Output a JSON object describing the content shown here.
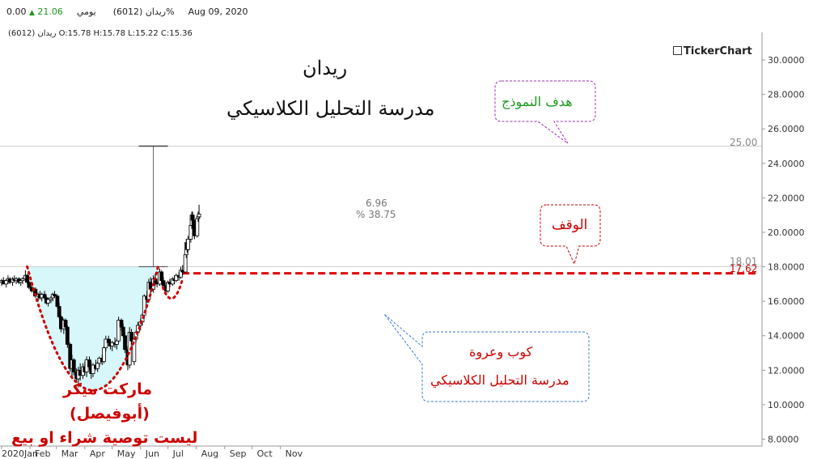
{
  "header": {
    "symbol": "ريدان (6012)",
    "period": "يومي",
    "price": "21.06",
    "change_pct": "0.00%",
    "date": "Aug 09, 2020"
  },
  "ohlc_line": "ريدان (6012)  O:15.78  H:15.78  L:15.22  C:15.36",
  "brand": "TickerChart",
  "titles": {
    "line1": "ريدان",
    "line2": "مدرسة التحليل الكلاسيكي"
  },
  "annotations": {
    "target_label": "هدف النموذج",
    "stop_label": "الوقف",
    "pattern_line1": "كوب وعروة",
    "pattern_line2": "مدرسة التحليل الكلاسيكي",
    "measure_value": "6.96",
    "measure_pct": "% 38.75",
    "target_price": "25.00",
    "neckline_price": "18.01",
    "stop_price": "17.62",
    "credit_line1": "ماركت ميكر",
    "credit_line2": "(أبوفيصل)",
    "credit_line3": "ليست توصية شراء او بيع"
  },
  "colors": {
    "up": "#ffffff",
    "down": "#000000",
    "cup_fill": "#d8f7fb",
    "dotted_red": "#cc0000",
    "stop_dashed": "#e00000",
    "target_callout": "#9b30b5",
    "target_text": "#1a9a1a",
    "pattern_callout": "#3a7bd5",
    "accent_green": "#1a9a1a"
  },
  "chart_data": {
    "type": "candlestick",
    "x_tick_labels": [
      "2020Jan",
      "Feb",
      "Mar",
      "Apr",
      "May",
      "Jun",
      "Jul",
      "Aug",
      "Sep",
      "Oct",
      "Nov"
    ],
    "y_tick_labels": [
      "8.0000",
      "10.0000",
      "12.0000",
      "14.0000",
      "16.0000",
      "18.0000",
      "20.0000",
      "22.0000",
      "24.0000",
      "26.0000",
      "28.0000",
      "30.0000"
    ],
    "ylim": [
      7.6,
      31.6
    ],
    "grid": false,
    "reference_lines": [
      {
        "label": "25.00",
        "value": 25.0
      },
      {
        "label": "18.01",
        "value": 18.01
      },
      {
        "label": "17.62",
        "value": 17.62
      }
    ],
    "candles": [
      {
        "d": "2020-01-01",
        "o": 17.1,
        "h": 17.3,
        "l": 16.9,
        "c": 17.2
      },
      {
        "d": "2020-01-03",
        "o": 17.2,
        "h": 17.4,
        "l": 17.0,
        "c": 17.0
      },
      {
        "d": "2020-01-06",
        "o": 17.0,
        "h": 17.3,
        "l": 16.8,
        "c": 17.2
      },
      {
        "d": "2020-01-08",
        "o": 17.2,
        "h": 17.5,
        "l": 17.0,
        "c": 17.3
      },
      {
        "d": "2020-01-10",
        "o": 17.3,
        "h": 17.4,
        "l": 17.0,
        "c": 17.1
      },
      {
        "d": "2020-01-13",
        "o": 17.1,
        "h": 17.4,
        "l": 16.9,
        "c": 17.3
      },
      {
        "d": "2020-01-15",
        "o": 17.3,
        "h": 17.5,
        "l": 17.1,
        "c": 17.2
      },
      {
        "d": "2020-01-17",
        "o": 17.2,
        "h": 17.4,
        "l": 17.0,
        "c": 17.3
      },
      {
        "d": "2020-01-20",
        "o": 17.3,
        "h": 17.4,
        "l": 17.0,
        "c": 17.1
      },
      {
        "d": "2020-01-22",
        "o": 17.1,
        "h": 17.3,
        "l": 16.9,
        "c": 17.2
      },
      {
        "d": "2020-01-24",
        "o": 17.2,
        "h": 17.4,
        "l": 17.0,
        "c": 17.3
      },
      {
        "d": "2020-01-27",
        "o": 17.3,
        "h": 17.8,
        "l": 17.1,
        "c": 17.5
      },
      {
        "d": "2020-01-29",
        "o": 17.5,
        "h": 17.6,
        "l": 17.0,
        "c": 17.1
      },
      {
        "d": "2020-01-31",
        "o": 17.1,
        "h": 17.2,
        "l": 16.7,
        "c": 16.8
      },
      {
        "d": "2020-02-03",
        "o": 16.8,
        "h": 17.0,
        "l": 16.5,
        "c": 16.6
      },
      {
        "d": "2020-02-05",
        "o": 16.6,
        "h": 16.8,
        "l": 16.3,
        "c": 16.7
      },
      {
        "d": "2020-02-07",
        "o": 16.7,
        "h": 16.8,
        "l": 16.2,
        "c": 16.3
      },
      {
        "d": "2020-02-10",
        "o": 16.3,
        "h": 16.5,
        "l": 16.0,
        "c": 16.4
      },
      {
        "d": "2020-02-12",
        "o": 16.4,
        "h": 16.6,
        "l": 16.1,
        "c": 16.2
      },
      {
        "d": "2020-02-14",
        "o": 16.2,
        "h": 16.5,
        "l": 16.0,
        "c": 16.4
      },
      {
        "d": "2020-02-17",
        "o": 16.4,
        "h": 16.6,
        "l": 16.1,
        "c": 16.2
      },
      {
        "d": "2020-02-19",
        "o": 16.2,
        "h": 16.3,
        "l": 15.8,
        "c": 15.9
      },
      {
        "d": "2020-02-21",
        "o": 15.9,
        "h": 16.2,
        "l": 15.7,
        "c": 16.1
      },
      {
        "d": "2020-02-24",
        "o": 16.1,
        "h": 16.3,
        "l": 15.9,
        "c": 16.2
      },
      {
        "d": "2020-02-26",
        "o": 16.2,
        "h": 16.5,
        "l": 16.0,
        "c": 16.4
      },
      {
        "d": "2020-02-28",
        "o": 16.4,
        "h": 16.6,
        "l": 16.2,
        "c": 16.3
      },
      {
        "d": "2020-03-02",
        "o": 16.3,
        "h": 16.4,
        "l": 15.6,
        "c": 15.7
      },
      {
        "d": "2020-03-04",
        "o": 15.7,
        "h": 15.9,
        "l": 15.0,
        "c": 15.1
      },
      {
        "d": "2020-03-06",
        "o": 15.1,
        "h": 15.2,
        "l": 14.2,
        "c": 14.4
      },
      {
        "d": "2020-03-09",
        "o": 14.4,
        "h": 15.0,
        "l": 14.1,
        "c": 14.9
      },
      {
        "d": "2020-03-11",
        "o": 14.9,
        "h": 15.0,
        "l": 14.3,
        "c": 14.5
      },
      {
        "d": "2020-03-13",
        "o": 14.5,
        "h": 14.6,
        "l": 13.3,
        "c": 13.5
      },
      {
        "d": "2020-03-16",
        "o": 13.5,
        "h": 13.6,
        "l": 11.9,
        "c": 12.1
      },
      {
        "d": "2020-03-18",
        "o": 12.1,
        "h": 12.9,
        "l": 11.6,
        "c": 12.6
      },
      {
        "d": "2020-03-20",
        "o": 12.6,
        "h": 12.7,
        "l": 11.7,
        "c": 11.9
      },
      {
        "d": "2020-03-23",
        "o": 11.9,
        "h": 12.1,
        "l": 11.3,
        "c": 11.5
      },
      {
        "d": "2020-03-25",
        "o": 11.5,
        "h": 12.2,
        "l": 11.0,
        "c": 12.0
      },
      {
        "d": "2020-03-27",
        "o": 12.0,
        "h": 12.4,
        "l": 11.4,
        "c": 11.7
      },
      {
        "d": "2020-03-30",
        "o": 11.7,
        "h": 12.4,
        "l": 11.5,
        "c": 12.2
      },
      {
        "d": "2020-04-01",
        "o": 12.2,
        "h": 12.5,
        "l": 11.7,
        "c": 11.9
      },
      {
        "d": "2020-04-03",
        "o": 11.9,
        "h": 12.8,
        "l": 11.6,
        "c": 12.6
      },
      {
        "d": "2020-04-06",
        "o": 12.6,
        "h": 12.8,
        "l": 12.0,
        "c": 12.2
      },
      {
        "d": "2020-04-08",
        "o": 12.2,
        "h": 12.5,
        "l": 11.5,
        "c": 11.8
      },
      {
        "d": "2020-04-10",
        "o": 11.8,
        "h": 12.4,
        "l": 11.6,
        "c": 12.3
      },
      {
        "d": "2020-04-13",
        "o": 12.3,
        "h": 12.6,
        "l": 12.0,
        "c": 12.1
      },
      {
        "d": "2020-04-15",
        "o": 12.1,
        "h": 12.5,
        "l": 11.9,
        "c": 12.4
      },
      {
        "d": "2020-04-17",
        "o": 12.4,
        "h": 12.8,
        "l": 12.2,
        "c": 12.7
      },
      {
        "d": "2020-04-20",
        "o": 12.7,
        "h": 12.9,
        "l": 12.3,
        "c": 12.5
      },
      {
        "d": "2020-04-22",
        "o": 12.5,
        "h": 13.4,
        "l": 12.4,
        "c": 13.3
      },
      {
        "d": "2020-04-24",
        "o": 13.3,
        "h": 14.0,
        "l": 13.1,
        "c": 13.8
      },
      {
        "d": "2020-04-27",
        "o": 13.8,
        "h": 14.0,
        "l": 13.4,
        "c": 13.6
      },
      {
        "d": "2020-04-29",
        "o": 13.6,
        "h": 13.8,
        "l": 13.2,
        "c": 13.4
      },
      {
        "d": "2020-05-01",
        "o": 13.4,
        "h": 13.7,
        "l": 13.1,
        "c": 13.6
      },
      {
        "d": "2020-05-04",
        "o": 13.6,
        "h": 13.9,
        "l": 13.3,
        "c": 13.5
      },
      {
        "d": "2020-05-06",
        "o": 13.5,
        "h": 13.8,
        "l": 13.2,
        "c": 13.7
      },
      {
        "d": "2020-05-08",
        "o": 13.7,
        "h": 15.1,
        "l": 13.6,
        "c": 14.9
      },
      {
        "d": "2020-05-11",
        "o": 14.9,
        "h": 15.0,
        "l": 14.3,
        "c": 14.5
      },
      {
        "d": "2020-05-13",
        "o": 14.5,
        "h": 14.7,
        "l": 13.9,
        "c": 14.0
      },
      {
        "d": "2020-05-15",
        "o": 14.0,
        "h": 14.2,
        "l": 13.0,
        "c": 13.2
      },
      {
        "d": "2020-05-18",
        "o": 13.2,
        "h": 13.4,
        "l": 12.0,
        "c": 12.3
      },
      {
        "d": "2020-05-20",
        "o": 12.3,
        "h": 14.5,
        "l": 12.1,
        "c": 14.2
      },
      {
        "d": "2020-05-22",
        "o": 14.2,
        "h": 14.4,
        "l": 13.5,
        "c": 13.7
      },
      {
        "d": "2020-05-25",
        "o": 12.5,
        "h": 13.9,
        "l": 12.3,
        "c": 13.8
      },
      {
        "d": "2020-05-27",
        "o": 13.8,
        "h": 14.3,
        "l": 13.6,
        "c": 14.2
      },
      {
        "d": "2020-05-29",
        "o": 14.2,
        "h": 14.8,
        "l": 14.0,
        "c": 14.6
      },
      {
        "d": "2020-06-01",
        "o": 14.6,
        "h": 15.0,
        "l": 14.3,
        "c": 14.8
      },
      {
        "d": "2020-06-03",
        "o": 14.8,
        "h": 15.3,
        "l": 14.6,
        "c": 15.2
      },
      {
        "d": "2020-06-05",
        "o": 15.2,
        "h": 16.4,
        "l": 15.0,
        "c": 16.3
      },
      {
        "d": "2020-06-08",
        "o": 16.3,
        "h": 16.6,
        "l": 15.9,
        "c": 16.1
      },
      {
        "d": "2020-06-10",
        "o": 16.1,
        "h": 17.3,
        "l": 16.0,
        "c": 17.1
      },
      {
        "d": "2020-06-12",
        "o": 17.1,
        "h": 17.4,
        "l": 16.5,
        "c": 16.7
      },
      {
        "d": "2020-06-15",
        "o": 16.7,
        "h": 17.5,
        "l": 16.5,
        "c": 17.3
      },
      {
        "d": "2020-06-17",
        "o": 17.3,
        "h": 17.6,
        "l": 16.9,
        "c": 17.1
      },
      {
        "d": "2020-06-19",
        "o": 17.1,
        "h": 17.3,
        "l": 16.8,
        "c": 17.0
      },
      {
        "d": "2020-06-22",
        "o": 17.0,
        "h": 17.9,
        "l": 16.9,
        "c": 17.7
      },
      {
        "d": "2020-06-24",
        "o": 17.7,
        "h": 17.8,
        "l": 17.0,
        "c": 17.2
      },
      {
        "d": "2020-06-26",
        "o": 17.2,
        "h": 17.4,
        "l": 16.7,
        "c": 16.9
      },
      {
        "d": "2020-06-29",
        "o": 16.9,
        "h": 17.1,
        "l": 16.4,
        "c": 16.6
      },
      {
        "d": "2020-07-01",
        "o": 16.6,
        "h": 17.2,
        "l": 16.5,
        "c": 17.1
      },
      {
        "d": "2020-07-03",
        "o": 17.1,
        "h": 17.3,
        "l": 16.8,
        "c": 17.0
      },
      {
        "d": "2020-07-06",
        "o": 17.0,
        "h": 17.4,
        "l": 16.9,
        "c": 17.3
      },
      {
        "d": "2020-07-08",
        "o": 17.3,
        "h": 17.5,
        "l": 17.0,
        "c": 17.2
      },
      {
        "d": "2020-07-10",
        "o": 17.2,
        "h": 17.6,
        "l": 17.1,
        "c": 17.5
      },
      {
        "d": "2020-07-13",
        "o": 17.5,
        "h": 17.7,
        "l": 17.2,
        "c": 17.4
      },
      {
        "d": "2020-07-15",
        "o": 17.4,
        "h": 18.0,
        "l": 17.3,
        "c": 17.8
      },
      {
        "d": "2020-07-17",
        "o": 17.8,
        "h": 18.1,
        "l": 17.5,
        "c": 17.7
      },
      {
        "d": "2020-07-20",
        "o": 17.7,
        "h": 18.9,
        "l": 17.6,
        "c": 18.7
      },
      {
        "d": "2020-07-21",
        "o": 18.7,
        "h": 19.6,
        "l": 18.5,
        "c": 19.4
      },
      {
        "d": "2020-07-22",
        "o": 19.4,
        "h": 19.6,
        "l": 18.8,
        "c": 19.0
      },
      {
        "d": "2020-07-23",
        "o": 19.0,
        "h": 19.8,
        "l": 18.9,
        "c": 19.6
      },
      {
        "d": "2020-07-26",
        "o": 19.6,
        "h": 20.6,
        "l": 19.4,
        "c": 20.4
      },
      {
        "d": "2020-07-27",
        "o": 20.4,
        "h": 21.2,
        "l": 20.2,
        "c": 21.0
      },
      {
        "d": "2020-07-28",
        "o": 21.0,
        "h": 21.2,
        "l": 20.5,
        "c": 20.7
      },
      {
        "d": "2020-07-29",
        "o": 20.7,
        "h": 21.0,
        "l": 20.1,
        "c": 20.3
      },
      {
        "d": "2020-07-30",
        "o": 20.3,
        "h": 20.5,
        "l": 19.6,
        "c": 19.8
      },
      {
        "d": "2020-08-02",
        "o": 19.8,
        "h": 21.0,
        "l": 19.7,
        "c": 20.8
      },
      {
        "d": "2020-08-03",
        "o": 20.8,
        "h": 21.2,
        "l": 20.6,
        "c": 20.9
      },
      {
        "d": "2020-08-04",
        "o": 20.9,
        "h": 21.6,
        "l": 20.8,
        "c": 21.06
      }
    ]
  }
}
